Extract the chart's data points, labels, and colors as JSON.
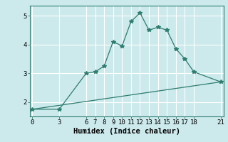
{
  "xlabel": "Humidex (Indice chaleur)",
  "background_color": "#cce9ec",
  "line_color": "#2e7d6e",
  "grid_color": "#ffffff",
  "curve1_x": [
    0,
    3,
    6,
    7,
    8,
    9,
    10,
    11,
    12,
    13,
    14,
    15,
    16,
    17,
    18,
    21
  ],
  "curve1_y": [
    1.75,
    1.75,
    3.0,
    3.05,
    3.25,
    4.1,
    3.95,
    4.8,
    5.1,
    4.5,
    4.6,
    4.5,
    3.85,
    3.5,
    3.05,
    2.7
  ],
  "curve2_x": [
    0,
    21
  ],
  "curve2_y": [
    1.75,
    2.7
  ],
  "xlim": [
    -0.3,
    21.3
  ],
  "ylim": [
    1.5,
    5.35
  ],
  "xticks": [
    0,
    3,
    6,
    7,
    8,
    9,
    10,
    11,
    12,
    13,
    14,
    15,
    16,
    17,
    18,
    21
  ],
  "yticks": [
    2,
    3,
    4,
    5
  ],
  "tick_fontsize": 6.5,
  "xlabel_fontsize": 7.5
}
